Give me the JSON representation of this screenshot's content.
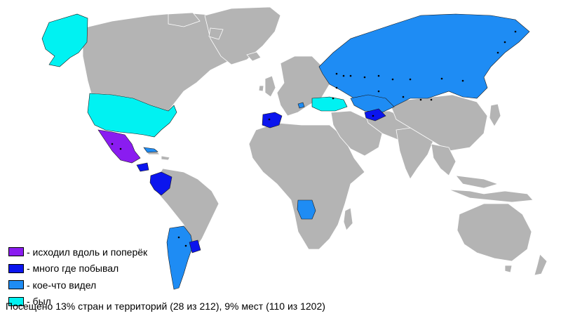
{
  "legend": [
    {
      "color": "#8a1cf0",
      "label": "- исходил вдоль и поперёк"
    },
    {
      "color": "#0b15ee",
      "label": "- много где побывал"
    },
    {
      "color": "#1e8cf4",
      "label": "- кое-что видел"
    },
    {
      "color": "#00f2f2",
      "label": "- был"
    }
  ],
  "summary": "Посещено 13% стран и территорий (28 из 212), 9% мест (110 из 1202)",
  "colors": {
    "land_unvisited": "#b4b4b4",
    "border": "#ffffff",
    "ocean": "#ffffff"
  }
}
